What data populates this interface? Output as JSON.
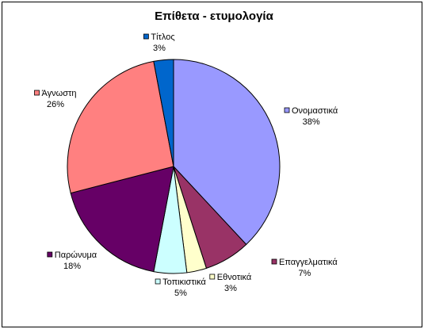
{
  "chart_data": {
    "type": "pie",
    "title": "Επίθετα - ετυμολογία",
    "slices": [
      {
        "label": "Ονομαστικά",
        "value": 38,
        "value_label": "38%",
        "color": "#9999ff"
      },
      {
        "label": "Επαγγελματικά",
        "value": 7,
        "value_label": "7%",
        "color": "#993366"
      },
      {
        "label": "Εθνοτικά",
        "value": 3,
        "value_label": "3%",
        "color": "#ffffcc"
      },
      {
        "label": "Τοπικιστικά",
        "value": 5,
        "value_label": "5%",
        "color": "#ccffff"
      },
      {
        "label": "Παρώνυμα",
        "value": 18,
        "value_label": "18%",
        "color": "#660066"
      },
      {
        "label": "Άγνωστη",
        "value": 26,
        "value_label": "26%",
        "color": "#ff8080"
      },
      {
        "label": "Τίτλος",
        "value": 3,
        "value_label": "3%",
        "color": "#0066cc"
      }
    ]
  }
}
